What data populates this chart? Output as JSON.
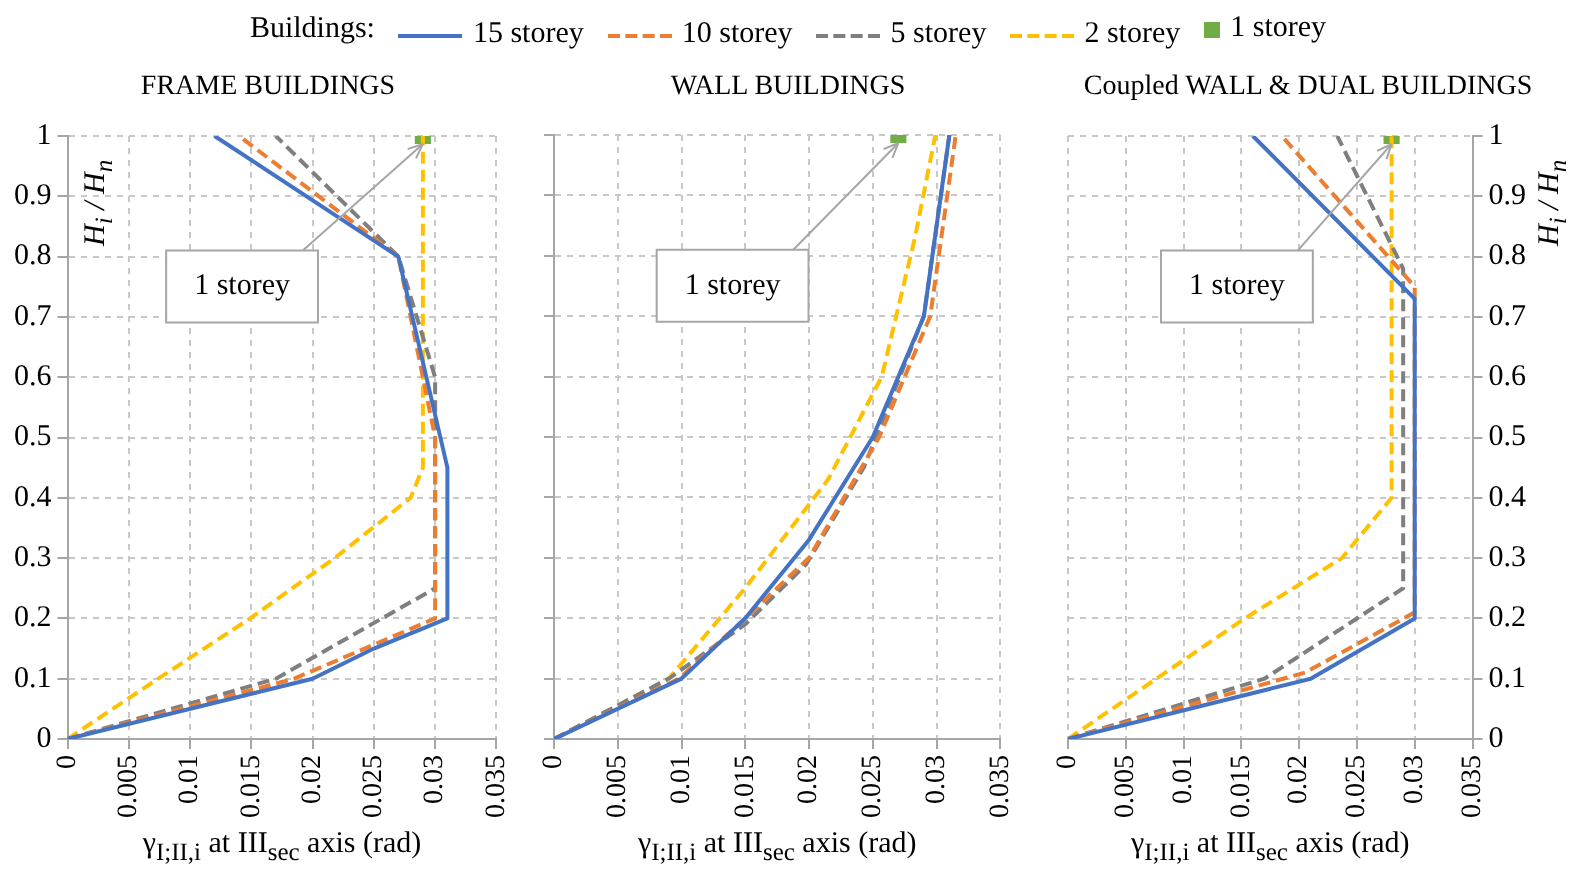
{
  "chart_data": [
    {
      "type": "line",
      "title": "FRAME BUILDINGS",
      "xlabel": "γ$_{I;II,i}$ at III$_{sec}$ axis (rad)",
      "ylabel": "H$_{i}$ / H$_{n}$",
      "legend_title": "Buildings:",
      "legend": "top",
      "grid": true,
      "xlim": [
        0,
        0.035
      ],
      "xticks": [
        0,
        0.005,
        0.01,
        0.015,
        0.02,
        0.025,
        0.03,
        0.035
      ],
      "ylim": [
        0,
        1
      ],
      "yticks": [
        0,
        0.1,
        0.2,
        0.3,
        0.4,
        0.5,
        0.6,
        0.7,
        0.8,
        0.9,
        1
      ],
      "annotations": [
        {
          "text": "1 storey",
          "x": 0.029,
          "y": 1
        }
      ],
      "series": [
        {
          "name": "15 storey",
          "color": "#4472c4",
          "line_style": "solid",
          "x": [
            0,
            0.02,
            0.025,
            0.031,
            0.031,
            0.027,
            0.012
          ],
          "values": [
            0,
            0.1,
            0.15,
            0.2,
            0.45,
            0.8,
            1
          ]
        },
        {
          "name": "10 storey",
          "color": "#ed7d31",
          "line_style": "dashed",
          "x": [
            0,
            0.0185,
            0.03,
            0.03,
            0.027,
            0.014
          ],
          "values": [
            0,
            0.1,
            0.2,
            0.5,
            0.8,
            1
          ]
        },
        {
          "name": "5 storey",
          "color": "#7f7f7f",
          "line_style": "dashed",
          "x": [
            0,
            0.017,
            0.03,
            0.03,
            0.027,
            0.017
          ],
          "values": [
            0,
            0.1,
            0.25,
            0.6,
            0.8,
            1
          ]
        },
        {
          "name": "2 storey",
          "color": "#ffc000",
          "line_style": "dashed",
          "x": [
            0,
            0.0074,
            0.0149,
            0.0218,
            0.028,
            0.029,
            0.029
          ],
          "values": [
            0,
            0.1,
            0.2,
            0.3,
            0.4,
            0.45,
            1
          ]
        },
        {
          "name": "1 storey",
          "type": "scatter",
          "marker": "square",
          "color": "#70ad47",
          "x": [
            0.029
          ],
          "values": [
            1
          ]
        }
      ]
    },
    {
      "type": "line",
      "title": "WALL BUILDINGS",
      "xlabel": "γ$_{I;II,i}$ at III$_{sec}$ axis (rad)",
      "grid": true,
      "tick_labels": "x",
      "xlim": [
        0,
        0.035
      ],
      "xticks": [
        0,
        0.005,
        0.01,
        0.015,
        0.02,
        0.025,
        0.03,
        0.035
      ],
      "ylim": [
        0,
        1
      ],
      "yticks": [
        0,
        0.1,
        0.2,
        0.3,
        0.4,
        0.5,
        0.6,
        0.7,
        0.8,
        0.9,
        1
      ],
      "annotations": [
        {
          "text": "1 storey",
          "x": 0.027,
          "y": 1
        }
      ],
      "series": [
        {
          "color": "#4472c4",
          "line_style": "solid",
          "x": [
            0,
            0.01,
            0.015,
            0.02,
            0.025,
            0.029,
            0.031
          ],
          "values": [
            0,
            0.1,
            0.2,
            0.33,
            0.5,
            0.7,
            1
          ]
        },
        {
          "color": "#ed7d31",
          "line_style": "dashed",
          "x": [
            0,
            0.0098,
            0.015,
            0.02,
            0.0255,
            0.0295,
            0.0315
          ],
          "values": [
            0,
            0.1,
            0.2,
            0.3,
            0.5,
            0.7,
            1
          ]
        },
        {
          "color": "#7f7f7f",
          "line_style": "dashed",
          "x": [
            0,
            0.009,
            0.015,
            0.0198,
            0.0243,
            0.029,
            0.031
          ],
          "values": [
            0,
            0.1,
            0.19,
            0.29,
            0.45,
            0.7,
            1
          ]
        },
        {
          "color": "#ffc000",
          "line_style": "dashed",
          "x": [
            0,
            0.009,
            0.015,
            0.0215,
            0.0257,
            0.0283,
            0.0299
          ],
          "values": [
            0,
            0.1,
            0.25,
            0.43,
            0.6,
            0.83,
            1
          ]
        },
        {
          "type": "scatter",
          "marker": "square",
          "color": "#70ad47",
          "x": [
            0.027
          ],
          "values": [
            1
          ]
        }
      ]
    },
    {
      "type": "line",
      "title": "Coupled WALL & DUAL BUILDINGS",
      "xlabel": "γ$_{I;II,i}$ at III$_{sec}$ axis (rad)",
      "ylabel": "H$_{i}$ / H$_{n}$",
      "grid": true,
      "xlim": [
        0,
        0.035
      ],
      "xticks": [
        0,
        0.005,
        0.01,
        0.015,
        0.02,
        0.025,
        0.03,
        0.035
      ],
      "ylim": [
        0,
        1
      ],
      "yticks": [
        0,
        0.1,
        0.2,
        0.3,
        0.4,
        0.5,
        0.6,
        0.7,
        0.8,
        0.9,
        1
      ],
      "annotations": [
        {
          "text": "1 storey",
          "x": 0.028,
          "y": 1
        }
      ],
      "series": [
        {
          "color": "#4472c4",
          "line_style": "solid",
          "x": [
            0,
            0.021,
            0.03,
            0.03,
            0.016
          ],
          "values": [
            0,
            0.1,
            0.2,
            0.73,
            1
          ]
        },
        {
          "color": "#ed7d31",
          "line_style": "dashed",
          "x": [
            0,
            0.0205,
            0.03,
            0.03,
            0.0185
          ],
          "values": [
            0,
            0.11,
            0.21,
            0.75,
            1
          ]
        },
        {
          "color": "#7f7f7f",
          "line_style": "dashed",
          "x": [
            0,
            0.017,
            0.029,
            0.029,
            0.0233
          ],
          "values": [
            0,
            0.1,
            0.25,
            0.78,
            1
          ]
        },
        {
          "color": "#ffc000",
          "line_style": "dashed",
          "x": [
            0,
            0.0153,
            0.0237,
            0.028,
            0.028
          ],
          "values": [
            0,
            0.2,
            0.3,
            0.4,
            1
          ]
        },
        {
          "type": "scatter",
          "marker": "square",
          "color": "#70ad47",
          "x": [
            0.028
          ],
          "values": [
            1
          ]
        }
      ]
    }
  ]
}
